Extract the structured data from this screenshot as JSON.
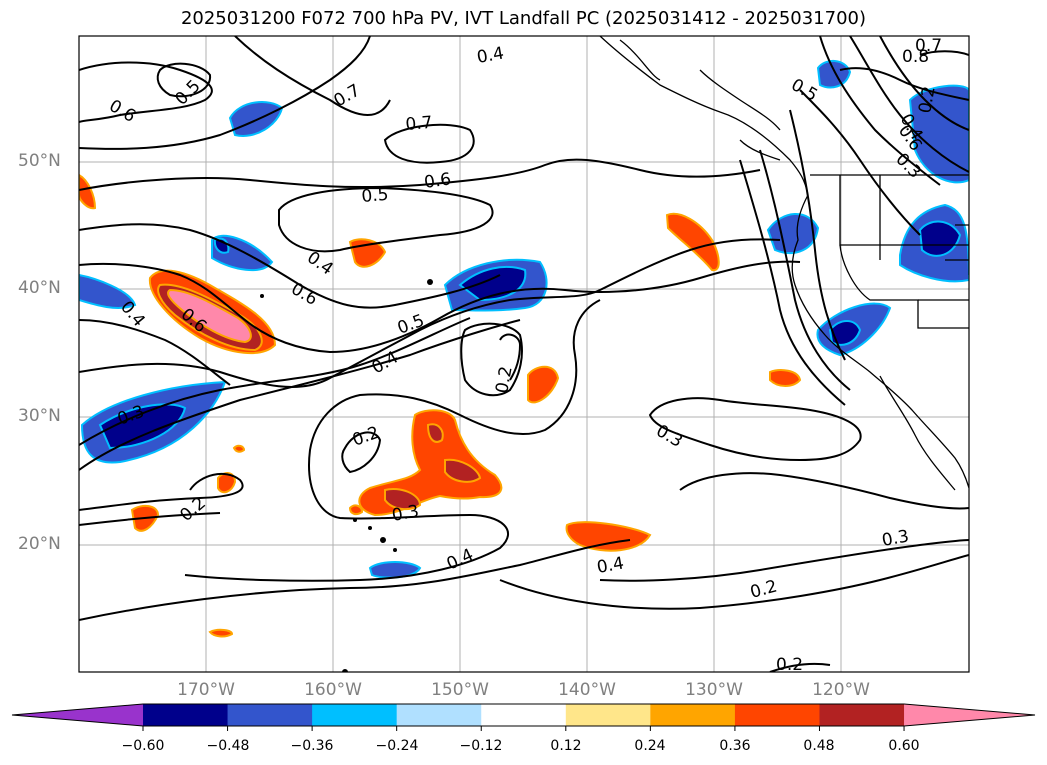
{
  "title": "2025031200 F072 700 hPa PV, IVT Landfall PC (2025031412 - 2025031700)",
  "lat_labels": [
    "50°N",
    "40°N",
    "30°N",
    "20°N"
  ],
  "lon_labels": [
    "170°W",
    "160°W",
    "150°W",
    "140°W",
    "130°W",
    "120°W"
  ],
  "contour_labels": [
    "0.4",
    "0.7",
    "0.8",
    "0.5",
    "0.7",
    "0.6",
    "0.5",
    "0.7",
    "0.6",
    "0.5",
    "0.6",
    "0.4",
    "0.6",
    "0.4",
    "0.4",
    "0.5",
    "0.4",
    "0.2",
    "0.2",
    "0.3",
    "0.2",
    "0.3",
    "0.4",
    "0.4",
    "0.3",
    "0.2",
    "0.2",
    "0.6",
    "0.3",
    "0.3",
    "0.2"
  ],
  "colorbar": {
    "labels": [
      "−0.60",
      "−0.48",
      "−0.36",
      "−0.24",
      "−0.12",
      "0.12",
      "0.24",
      "0.36",
      "0.48",
      "0.60"
    ],
    "colors": [
      "#9933cc",
      "#00008b",
      "#3355cc",
      "#00bfff",
      "#b0e0ff",
      "#ffffff",
      "#ffe68a",
      "#ffa500",
      "#ff4500",
      "#b22222",
      "#ff88aa"
    ]
  },
  "colors": {
    "land_outline": "#000000",
    "grid": "#b0b0b0",
    "tick_label": "#808080"
  }
}
